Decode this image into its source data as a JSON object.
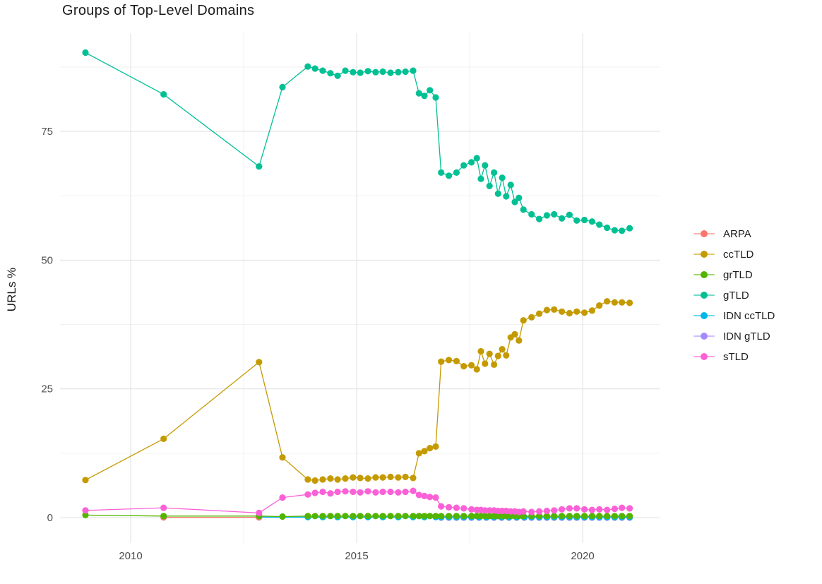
{
  "title": "Groups of Top-Level Domains",
  "colors": {
    "background": "#FFFFFF",
    "grid_major": "#E3E3E3",
    "grid_minor": "#F2F2F2",
    "tick_label": "#4D4D4D",
    "title_text": "#1C1C1C",
    "legend_text": "#1C1C1C"
  },
  "chart_data": {
    "type": "line",
    "title": "Groups of Top-Level Domains",
    "xlabel": "",
    "ylabel": "URLs %",
    "xlim": [
      2008.45,
      2021.7
    ],
    "ylim": [
      -1,
      93
    ],
    "grid": true,
    "legend_position": "right",
    "axes": {
      "y_label": "URLs %",
      "x_ticks": [
        {
          "value": 2010,
          "label": "2010"
        },
        {
          "value": 2015,
          "label": "2015"
        },
        {
          "value": 2020,
          "label": "2020"
        }
      ],
      "x_minor": [
        2012.5,
        2017.5
      ],
      "y_ticks": [
        {
          "value": 0,
          "label": "0"
        },
        {
          "value": 25,
          "label": "25"
        },
        {
          "value": 50,
          "label": "50"
        },
        {
          "value": 75,
          "label": "75"
        }
      ],
      "y_minor": [
        12.5,
        37.5,
        62.5,
        87.5
      ]
    },
    "series": [
      {
        "name": "ARPA",
        "color": "#F8766D",
        "points": [
          [
            2010.73,
            0.05
          ],
          [
            2012.84,
            0.05
          ]
        ]
      },
      {
        "name": "ccTLD",
        "color": "#C49A00",
        "points": [
          [
            2009.0,
            7.3
          ],
          [
            2010.73,
            15.3
          ],
          [
            2012.84,
            30.2
          ],
          [
            2013.36,
            11.7
          ],
          [
            2013.92,
            7.4
          ],
          [
            2014.08,
            7.2
          ],
          [
            2014.25,
            7.4
          ],
          [
            2014.42,
            7.6
          ],
          [
            2014.58,
            7.4
          ],
          [
            2014.75,
            7.6
          ],
          [
            2014.92,
            7.8
          ],
          [
            2015.08,
            7.7
          ],
          [
            2015.25,
            7.6
          ],
          [
            2015.42,
            7.8
          ],
          [
            2015.58,
            7.8
          ],
          [
            2015.75,
            7.9
          ],
          [
            2015.92,
            7.8
          ],
          [
            2016.08,
            7.9
          ],
          [
            2016.25,
            7.7
          ],
          [
            2016.38,
            12.5
          ],
          [
            2016.5,
            12.9
          ],
          [
            2016.62,
            13.5
          ],
          [
            2016.75,
            13.8
          ],
          [
            2016.87,
            30.3
          ],
          [
            2017.04,
            30.6
          ],
          [
            2017.21,
            30.4
          ],
          [
            2017.37,
            29.4
          ],
          [
            2017.54,
            29.6
          ],
          [
            2017.66,
            28.8
          ],
          [
            2017.75,
            32.3
          ],
          [
            2017.84,
            29.9
          ],
          [
            2017.94,
            31.8
          ],
          [
            2018.04,
            29.7
          ],
          [
            2018.13,
            31.4
          ],
          [
            2018.22,
            32.7
          ],
          [
            2018.31,
            31.5
          ],
          [
            2018.41,
            35.0
          ],
          [
            2018.5,
            35.6
          ],
          [
            2018.59,
            34.4
          ],
          [
            2018.69,
            38.3
          ],
          [
            2018.87,
            38.9
          ],
          [
            2019.04,
            39.6
          ],
          [
            2019.21,
            40.3
          ],
          [
            2019.37,
            40.4
          ],
          [
            2019.54,
            40.0
          ],
          [
            2019.71,
            39.7
          ],
          [
            2019.87,
            40.0
          ],
          [
            2020.04,
            39.8
          ],
          [
            2020.21,
            40.2
          ],
          [
            2020.37,
            41.2
          ],
          [
            2020.54,
            42.0
          ],
          [
            2020.71,
            41.8
          ],
          [
            2020.87,
            41.8
          ],
          [
            2021.04,
            41.7
          ]
        ]
      },
      {
        "name": "grTLD",
        "color": "#53B400",
        "points": [
          [
            2009.0,
            0.5
          ],
          [
            2010.73,
            0.3
          ],
          [
            2012.84,
            0.3
          ],
          [
            2013.36,
            0.2
          ],
          [
            2013.92,
            0.3
          ],
          [
            2014.08,
            0.3
          ],
          [
            2014.25,
            0.3
          ],
          [
            2014.42,
            0.3
          ],
          [
            2014.58,
            0.3
          ],
          [
            2014.75,
            0.3
          ],
          [
            2014.92,
            0.3
          ],
          [
            2015.08,
            0.3
          ],
          [
            2015.25,
            0.3
          ],
          [
            2015.42,
            0.3
          ],
          [
            2015.58,
            0.3
          ],
          [
            2015.75,
            0.3
          ],
          [
            2015.92,
            0.3
          ],
          [
            2016.08,
            0.3
          ],
          [
            2016.25,
            0.3
          ],
          [
            2016.38,
            0.3
          ],
          [
            2016.5,
            0.3
          ],
          [
            2016.62,
            0.3
          ],
          [
            2016.75,
            0.3
          ],
          [
            2016.87,
            0.3
          ],
          [
            2017.04,
            0.3
          ],
          [
            2017.21,
            0.3
          ],
          [
            2017.37,
            0.3
          ],
          [
            2017.54,
            0.3
          ],
          [
            2017.66,
            0.3
          ],
          [
            2017.75,
            0.3
          ],
          [
            2017.84,
            0.3
          ],
          [
            2017.94,
            0.3
          ],
          [
            2018.04,
            0.3
          ],
          [
            2018.13,
            0.3
          ],
          [
            2018.22,
            0.3
          ],
          [
            2018.31,
            0.3
          ],
          [
            2018.41,
            0.3
          ],
          [
            2018.5,
            0.3
          ],
          [
            2018.59,
            0.3
          ],
          [
            2018.69,
            0.3
          ],
          [
            2018.87,
            0.3
          ],
          [
            2019.04,
            0.3
          ],
          [
            2019.21,
            0.3
          ],
          [
            2019.37,
            0.3
          ],
          [
            2019.54,
            0.3
          ],
          [
            2019.71,
            0.3
          ],
          [
            2019.87,
            0.3
          ],
          [
            2020.04,
            0.3
          ],
          [
            2020.21,
            0.3
          ],
          [
            2020.37,
            0.3
          ],
          [
            2020.54,
            0.3
          ],
          [
            2020.71,
            0.3
          ],
          [
            2020.87,
            0.3
          ],
          [
            2021.04,
            0.3
          ]
        ]
      },
      {
        "name": "gTLD",
        "color": "#00C094",
        "points": [
          [
            2009.0,
            90.3
          ],
          [
            2010.73,
            82.2
          ],
          [
            2012.84,
            68.2
          ],
          [
            2013.36,
            83.6
          ],
          [
            2013.92,
            87.6
          ],
          [
            2014.08,
            87.2
          ],
          [
            2014.25,
            86.8
          ],
          [
            2014.42,
            86.3
          ],
          [
            2014.58,
            85.8
          ],
          [
            2014.75,
            86.8
          ],
          [
            2014.92,
            86.5
          ],
          [
            2015.08,
            86.4
          ],
          [
            2015.25,
            86.7
          ],
          [
            2015.42,
            86.5
          ],
          [
            2015.58,
            86.6
          ],
          [
            2015.75,
            86.4
          ],
          [
            2015.92,
            86.5
          ],
          [
            2016.08,
            86.6
          ],
          [
            2016.25,
            86.8
          ],
          [
            2016.38,
            82.4
          ],
          [
            2016.5,
            81.9
          ],
          [
            2016.62,
            83.0
          ],
          [
            2016.75,
            81.6
          ],
          [
            2016.87,
            67.0
          ],
          [
            2017.04,
            66.4
          ],
          [
            2017.21,
            67.0
          ],
          [
            2017.37,
            68.4
          ],
          [
            2017.54,
            69.0
          ],
          [
            2017.66,
            69.8
          ],
          [
            2017.75,
            65.8
          ],
          [
            2017.84,
            68.4
          ],
          [
            2017.94,
            64.4
          ],
          [
            2018.04,
            67.0
          ],
          [
            2018.13,
            62.9
          ],
          [
            2018.22,
            66.0
          ],
          [
            2018.31,
            62.4
          ],
          [
            2018.41,
            64.6
          ],
          [
            2018.5,
            61.3
          ],
          [
            2018.59,
            62.1
          ],
          [
            2018.69,
            59.8
          ],
          [
            2018.87,
            58.9
          ],
          [
            2019.04,
            58.0
          ],
          [
            2019.21,
            58.7
          ],
          [
            2019.37,
            58.9
          ],
          [
            2019.54,
            58.1
          ],
          [
            2019.71,
            58.8
          ],
          [
            2019.87,
            57.7
          ],
          [
            2020.04,
            57.8
          ],
          [
            2020.21,
            57.5
          ],
          [
            2020.37,
            56.9
          ],
          [
            2020.54,
            56.3
          ],
          [
            2020.71,
            55.8
          ],
          [
            2020.87,
            55.7
          ],
          [
            2021.04,
            56.2
          ]
        ]
      },
      {
        "name": "IDN ccTLD",
        "color": "#00B6EB",
        "points": [
          [
            2012.84,
            0.1
          ],
          [
            2013.92,
            0.1
          ],
          [
            2014.25,
            0.1
          ],
          [
            2014.58,
            0.1
          ],
          [
            2014.92,
            0.1
          ],
          [
            2015.25,
            0.1
          ],
          [
            2015.58,
            0.1
          ],
          [
            2015.92,
            0.1
          ],
          [
            2016.25,
            0.1
          ],
          [
            2016.5,
            0.1
          ],
          [
            2016.75,
            0.1
          ],
          [
            2016.87,
            0.1
          ],
          [
            2017.04,
            0.1
          ],
          [
            2017.21,
            0.1
          ],
          [
            2017.37,
            0.1
          ],
          [
            2017.54,
            0.1
          ],
          [
            2017.71,
            0.1
          ],
          [
            2017.87,
            0.1
          ],
          [
            2018.04,
            0.1
          ],
          [
            2018.21,
            0.1
          ],
          [
            2018.37,
            0.1
          ],
          [
            2018.54,
            0.1
          ],
          [
            2018.71,
            0.1
          ],
          [
            2018.87,
            0.1
          ],
          [
            2019.04,
            0.1
          ],
          [
            2019.21,
            0.1
          ],
          [
            2019.37,
            0.1
          ],
          [
            2019.54,
            0.1
          ],
          [
            2019.71,
            0.1
          ],
          [
            2019.87,
            0.1
          ],
          [
            2020.04,
            0.1
          ],
          [
            2020.21,
            0.1
          ],
          [
            2020.37,
            0.1
          ],
          [
            2020.54,
            0.1
          ],
          [
            2020.71,
            0.1
          ],
          [
            2020.87,
            0.1
          ],
          [
            2021.04,
            0.1
          ]
        ]
      },
      {
        "name": "IDN gTLD",
        "color": "#A58AFF",
        "points": [
          [
            2016.87,
            0.0
          ],
          [
            2017.04,
            0.0
          ],
          [
            2017.21,
            0.0
          ],
          [
            2017.37,
            0.0
          ],
          [
            2017.54,
            0.0
          ],
          [
            2017.71,
            0.0
          ],
          [
            2017.87,
            0.0
          ],
          [
            2018.04,
            0.0
          ],
          [
            2018.21,
            0.0
          ],
          [
            2018.37,
            0.0
          ],
          [
            2018.54,
            0.0
          ],
          [
            2018.71,
            0.0
          ],
          [
            2018.87,
            0.0
          ],
          [
            2019.04,
            0.0
          ],
          [
            2019.21,
            0.0
          ],
          [
            2019.37,
            0.0
          ],
          [
            2019.54,
            0.0
          ],
          [
            2019.71,
            0.0
          ],
          [
            2019.87,
            0.0
          ],
          [
            2020.04,
            0.0
          ],
          [
            2020.21,
            0.0
          ],
          [
            2020.37,
            0.0
          ],
          [
            2020.54,
            0.0
          ],
          [
            2020.71,
            0.0
          ],
          [
            2020.87,
            0.0
          ],
          [
            2021.04,
            0.0
          ]
        ]
      },
      {
        "name": "sTLD",
        "color": "#FB61D7",
        "points": [
          [
            2009.0,
            1.4
          ],
          [
            2010.73,
            1.9
          ],
          [
            2012.84,
            0.9
          ],
          [
            2013.36,
            3.9
          ],
          [
            2013.92,
            4.5
          ],
          [
            2014.08,
            4.8
          ],
          [
            2014.25,
            5.0
          ],
          [
            2014.42,
            4.7
          ],
          [
            2014.58,
            5.0
          ],
          [
            2014.75,
            5.1
          ],
          [
            2014.92,
            5.0
          ],
          [
            2015.08,
            4.9
          ],
          [
            2015.25,
            5.1
          ],
          [
            2015.42,
            4.9
          ],
          [
            2015.58,
            5.0
          ],
          [
            2015.75,
            5.0
          ],
          [
            2015.92,
            4.9
          ],
          [
            2016.08,
            5.0
          ],
          [
            2016.25,
            5.2
          ],
          [
            2016.38,
            4.4
          ],
          [
            2016.5,
            4.2
          ],
          [
            2016.62,
            4.0
          ],
          [
            2016.75,
            3.9
          ],
          [
            2016.87,
            2.2
          ],
          [
            2017.04,
            2.0
          ],
          [
            2017.21,
            1.9
          ],
          [
            2017.37,
            1.8
          ],
          [
            2017.54,
            1.6
          ],
          [
            2017.66,
            1.5
          ],
          [
            2017.75,
            1.5
          ],
          [
            2017.84,
            1.4
          ],
          [
            2017.94,
            1.4
          ],
          [
            2018.04,
            1.4
          ],
          [
            2018.13,
            1.3
          ],
          [
            2018.22,
            1.3
          ],
          [
            2018.31,
            1.3
          ],
          [
            2018.41,
            1.2
          ],
          [
            2018.5,
            1.2
          ],
          [
            2018.59,
            1.1
          ],
          [
            2018.69,
            1.2
          ],
          [
            2018.87,
            1.1
          ],
          [
            2019.04,
            1.2
          ],
          [
            2019.21,
            1.3
          ],
          [
            2019.37,
            1.4
          ],
          [
            2019.54,
            1.6
          ],
          [
            2019.71,
            1.8
          ],
          [
            2019.87,
            1.8
          ],
          [
            2020.04,
            1.6
          ],
          [
            2020.21,
            1.5
          ],
          [
            2020.37,
            1.6
          ],
          [
            2020.54,
            1.5
          ],
          [
            2020.71,
            1.7
          ],
          [
            2020.87,
            1.9
          ],
          [
            2021.04,
            1.8
          ]
        ]
      }
    ]
  }
}
